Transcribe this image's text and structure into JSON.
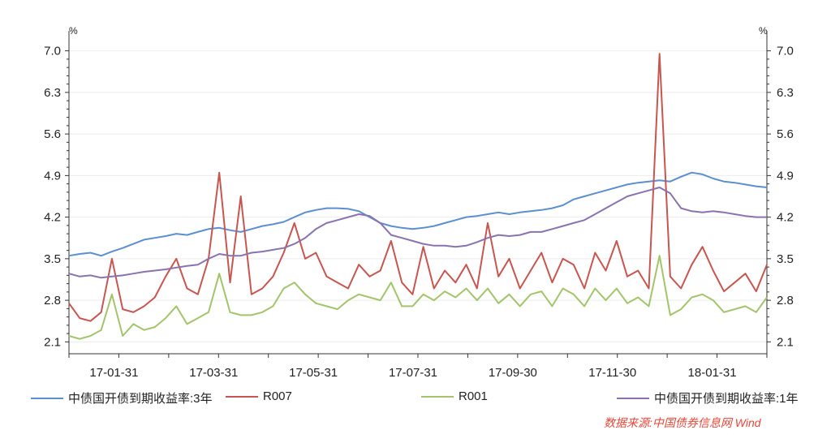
{
  "chart_data": {
    "type": "line",
    "unit_label_left": "%",
    "unit_label_right": "%",
    "ylim": [
      1.9,
      7.2
    ],
    "yticks": [
      "2.1",
      "2.8",
      "3.5",
      "4.2",
      "4.9",
      "5.6",
      "6.3",
      "7.0"
    ],
    "xticks": [
      "17-01-31",
      "17-03-31",
      "17-05-31",
      "17-07-31",
      "17-09-30",
      "17-11-30",
      "18-01-31"
    ],
    "x_range_months": [
      "2017-01",
      "2018-02"
    ],
    "series": [
      {
        "name": "中债国开债到期收益率:3年",
        "color": "#5b8fd0",
        "values": [
          3.55,
          3.58,
          3.6,
          3.55,
          3.62,
          3.68,
          3.75,
          3.82,
          3.85,
          3.88,
          3.92,
          3.9,
          3.95,
          4.0,
          4.02,
          3.98,
          3.95,
          4.0,
          4.05,
          4.08,
          4.12,
          4.2,
          4.28,
          4.32,
          4.35,
          4.35,
          4.34,
          4.3,
          4.2,
          4.1,
          4.05,
          4.02,
          4.0,
          4.02,
          4.05,
          4.1,
          4.15,
          4.2,
          4.22,
          4.25,
          4.28,
          4.25,
          4.28,
          4.3,
          4.32,
          4.35,
          4.4,
          4.5,
          4.55,
          4.6,
          4.65,
          4.7,
          4.75,
          4.78,
          4.8,
          4.82,
          4.8,
          4.88,
          4.95,
          4.92,
          4.85,
          4.8,
          4.78,
          4.75,
          4.72,
          4.7
        ]
      },
      {
        "name": "R007",
        "color": "#c8554f",
        "values": [
          2.75,
          2.5,
          2.45,
          2.6,
          3.5,
          2.65,
          2.6,
          2.7,
          2.85,
          3.2,
          3.5,
          3.0,
          2.9,
          3.5,
          4.95,
          3.1,
          4.55,
          2.9,
          3.0,
          3.2,
          3.6,
          4.1,
          3.5,
          3.6,
          3.2,
          3.1,
          3.0,
          3.4,
          3.2,
          3.3,
          3.8,
          3.1,
          2.9,
          3.7,
          3.0,
          3.3,
          3.1,
          3.4,
          3.0,
          4.1,
          3.2,
          3.5,
          3.0,
          3.3,
          3.6,
          3.1,
          3.5,
          3.4,
          3.0,
          3.6,
          3.3,
          3.8,
          3.2,
          3.3,
          3.0,
          6.95,
          3.2,
          3.0,
          3.4,
          3.7,
          3.3,
          2.95,
          3.1,
          3.25,
          2.95,
          3.4
        ]
      },
      {
        "name": "R001",
        "color": "#a3c46b",
        "values": [
          2.2,
          2.15,
          2.2,
          2.3,
          2.9,
          2.2,
          2.4,
          2.3,
          2.35,
          2.5,
          2.7,
          2.4,
          2.5,
          2.6,
          3.25,
          2.6,
          2.55,
          2.55,
          2.6,
          2.7,
          3.0,
          3.1,
          2.9,
          2.75,
          2.7,
          2.65,
          2.8,
          2.9,
          2.85,
          2.8,
          3.1,
          2.7,
          2.7,
          2.9,
          2.8,
          2.95,
          2.85,
          3.0,
          2.8,
          3.0,
          2.75,
          2.9,
          2.7,
          2.9,
          2.95,
          2.7,
          3.0,
          2.9,
          2.7,
          3.0,
          2.8,
          3.0,
          2.75,
          2.85,
          2.7,
          3.55,
          2.55,
          2.65,
          2.85,
          2.9,
          2.8,
          2.6,
          2.65,
          2.7,
          2.6,
          2.85
        ]
      },
      {
        "name": "中债国开债到期收益率:1年",
        "color": "#8a72b0",
        "values": [
          3.25,
          3.2,
          3.22,
          3.18,
          3.2,
          3.22,
          3.25,
          3.28,
          3.3,
          3.32,
          3.35,
          3.38,
          3.4,
          3.5,
          3.58,
          3.55,
          3.55,
          3.6,
          3.62,
          3.65,
          3.68,
          3.75,
          3.85,
          4.0,
          4.1,
          4.15,
          4.2,
          4.25,
          4.22,
          4.1,
          3.9,
          3.85,
          3.8,
          3.75,
          3.72,
          3.72,
          3.7,
          3.72,
          3.78,
          3.85,
          3.9,
          3.88,
          3.9,
          3.95,
          3.95,
          4.0,
          4.05,
          4.1,
          4.15,
          4.25,
          4.35,
          4.45,
          4.55,
          4.6,
          4.65,
          4.7,
          4.6,
          4.35,
          4.3,
          4.28,
          4.3,
          4.28,
          4.25,
          4.22,
          4.2,
          4.2
        ]
      }
    ]
  },
  "source_text": "数据来源:中国债券信息网 Wind"
}
